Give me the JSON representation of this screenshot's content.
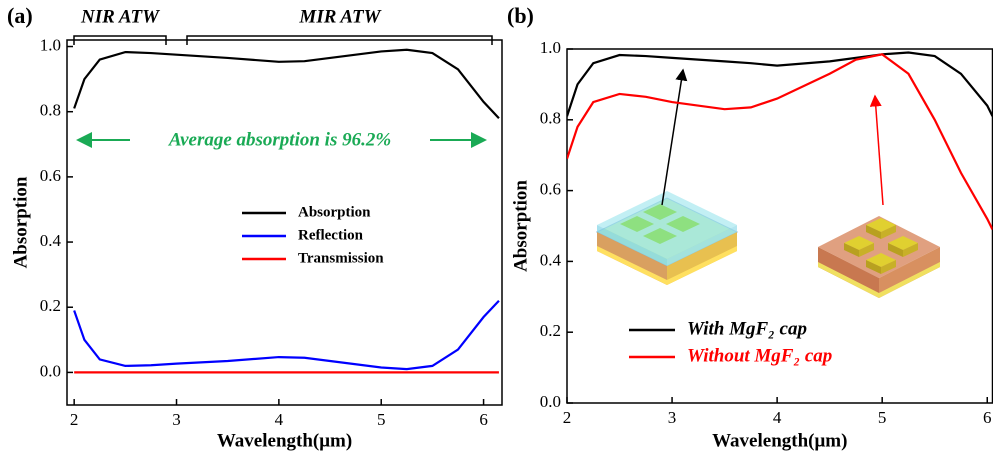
{
  "chart_data": [
    {
      "type": "line",
      "panel_label": "(a)",
      "x_label": "Wavelength(μm)",
      "y_label": "Absorption",
      "xlim": [
        1.93,
        6.18
      ],
      "ylim": [
        -0.1,
        1.02
      ],
      "xticks": [
        2,
        3,
        4,
        5,
        6
      ],
      "yticks": [
        {
          "value": 0,
          "label": "0.0"
        },
        0.2,
        0.4,
        0.6,
        0.8,
        {
          "value": 1,
          "label": "1.0"
        }
      ],
      "legend": "center",
      "annotations": [
        "NIR ATW",
        "MIR ATW",
        "Average absorption is 96.2%"
      ],
      "x": [
        2.0,
        2.1,
        2.25,
        2.5,
        2.75,
        3.0,
        3.5,
        4.0,
        4.25,
        4.5,
        5.0,
        5.25,
        5.5,
        5.75,
        6.0,
        6.15
      ],
      "series": [
        {
          "name": "Absorption",
          "color": "#000000",
          "values": [
            0.81,
            0.9,
            0.96,
            0.983,
            0.98,
            0.975,
            0.965,
            0.953,
            0.955,
            0.965,
            0.985,
            0.99,
            0.98,
            0.93,
            0.83,
            0.78
          ]
        },
        {
          "name": "Reflection",
          "color": "#0000ff",
          "values": [
            0.19,
            0.1,
            0.04,
            0.02,
            0.022,
            0.027,
            0.035,
            0.047,
            0.045,
            0.035,
            0.015,
            0.01,
            0.02,
            0.07,
            0.17,
            0.22
          ]
        },
        {
          "name": "Transmission",
          "color": "#ff0000",
          "values": [
            0,
            0,
            0,
            0,
            0,
            0,
            0,
            0,
            0,
            0,
            0,
            0,
            0,
            0,
            0,
            0
          ]
        }
      ]
    },
    {
      "type": "line",
      "panel_label": "(b)",
      "x_label": "Wavelength(μm)",
      "y_label": "Absorption",
      "xlim": [
        2,
        6.05
      ],
      "ylim": [
        0,
        1
      ],
      "xticks": [
        2,
        3,
        4,
        5,
        6
      ],
      "yticks": [
        {
          "value": 0,
          "label": "0.0"
        },
        0.2,
        0.4,
        0.6,
        0.8,
        {
          "value": 1,
          "label": "1.0"
        }
      ],
      "legend": "lower left",
      "x": [
        2.0,
        2.1,
        2.25,
        2.5,
        2.75,
        3.0,
        3.5,
        3.75,
        4.0,
        4.5,
        4.75,
        5.0,
        5.25,
        5.5,
        5.75,
        6.0,
        6.05
      ],
      "series": [
        {
          "name": "With MgF₂ cap",
          "color": "#000000",
          "values": [
            0.81,
            0.9,
            0.96,
            0.983,
            0.98,
            0.975,
            0.965,
            0.96,
            0.953,
            0.965,
            0.975,
            0.985,
            0.99,
            0.98,
            0.93,
            0.84,
            0.81
          ]
        },
        {
          "name": "Without MgF₂ cap",
          "color": "#ff0000",
          "values": [
            0.69,
            0.78,
            0.85,
            0.873,
            0.865,
            0.85,
            0.83,
            0.835,
            0.86,
            0.93,
            0.97,
            0.985,
            0.93,
            0.8,
            0.65,
            0.52,
            0.49
          ]
        }
      ]
    }
  ]
}
